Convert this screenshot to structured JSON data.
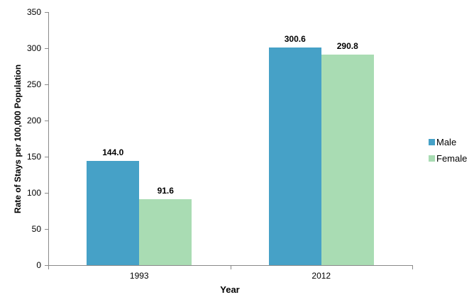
{
  "chart_data": {
    "type": "bar",
    "title": "",
    "xlabel": "Year",
    "ylabel": "Rate of Stays per 100,000 Population",
    "categories": [
      "1993",
      "2012"
    ],
    "series": [
      {
        "name": "Male",
        "color": "#46A1C7",
        "values": [
          144.0,
          300.6
        ],
        "labels": [
          "144.0",
          "300.6"
        ]
      },
      {
        "name": "Female",
        "color": "#A9DCB3",
        "values": [
          91.6,
          290.8
        ],
        "labels": [
          "91.6",
          "290.8"
        ]
      }
    ],
    "ylim": [
      0,
      350
    ],
    "ytick_step": 50,
    "ytick_labels": [
      "0",
      "50",
      "100",
      "150",
      "200",
      "250",
      "300",
      "350"
    ],
    "grid": false,
    "legend_position": "right",
    "axis_color": "#898989",
    "text_color": "#000000"
  }
}
